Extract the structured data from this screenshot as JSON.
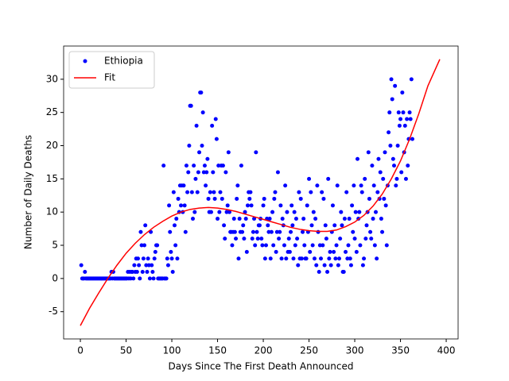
{
  "chart_data": {
    "type": "scatter",
    "xlabel": "Days Since The First Death Announced",
    "ylabel": "Number of Daily Deaths",
    "xlim": [
      -18.3,
      413
    ],
    "ylim": [
      -9.1,
      35.0
    ],
    "xticks": [
      0,
      50,
      100,
      150,
      200,
      250,
      300,
      350,
      400
    ],
    "yticks": [
      -5,
      0,
      5,
      10,
      15,
      20,
      25,
      30
    ],
    "legend": "upper left",
    "series": [
      {
        "name": "Ethiopia",
        "color": "#0000ff",
        "mode": "markers",
        "x": [
          1,
          2,
          3,
          4,
          5,
          6,
          7,
          8,
          9,
          10,
          11,
          12,
          13,
          14,
          15,
          16,
          17,
          18,
          19,
          20,
          21,
          22,
          23,
          24,
          25,
          26,
          27,
          28,
          29,
          30,
          31,
          32,
          33,
          34,
          35,
          36,
          37,
          38,
          39,
          40,
          41,
          42,
          43,
          44,
          45,
          46,
          47,
          48,
          49,
          50,
          51,
          52,
          53,
          54,
          55,
          56,
          57,
          58,
          59,
          60,
          61,
          62,
          63,
          64,
          65,
          66,
          67,
          68,
          69,
          70,
          71,
          72,
          73,
          74,
          75,
          76,
          77,
          78,
          79,
          80,
          81,
          82,
          83,
          84,
          85,
          86,
          87,
          88,
          89,
          90,
          91,
          92,
          93,
          94,
          95,
          96,
          97,
          98,
          99,
          100,
          101,
          102,
          103,
          104,
          105,
          106,
          107,
          108,
          109,
          110,
          111,
          112,
          113,
          114,
          115,
          116,
          117,
          118,
          119,
          120,
          121,
          122,
          123,
          124,
          125,
          126,
          127,
          128,
          129,
          130,
          131,
          132,
          133,
          134,
          135,
          136,
          137,
          138,
          139,
          140,
          141,
          142,
          143,
          144,
          145,
          146,
          147,
          148,
          149,
          150,
          151,
          152,
          153,
          154,
          155,
          156,
          157,
          158,
          159,
          160,
          161,
          162,
          163,
          164,
          165,
          166,
          167,
          168,
          169,
          170,
          171,
          172,
          173,
          174,
          175,
          176,
          177,
          178,
          179,
          180,
          181,
          182,
          183,
          184,
          185,
          186,
          187,
          188,
          189,
          190,
          191,
          192,
          193,
          194,
          195,
          196,
          197,
          198,
          199,
          200,
          201,
          202,
          203,
          204,
          205,
          206,
          207,
          208,
          209,
          210,
          211,
          212,
          213,
          214,
          215,
          216,
          217,
          218,
          219,
          220,
          221,
          222,
          223,
          224,
          225,
          226,
          227,
          228,
          229,
          230,
          231,
          232,
          233,
          234,
          235,
          236,
          237,
          238,
          239,
          240,
          241,
          242,
          243,
          244,
          245,
          246,
          247,
          248,
          249,
          250,
          251,
          252,
          253,
          254,
          255,
          256,
          257,
          258,
          259,
          260,
          261,
          262,
          263,
          264,
          265,
          266,
          267,
          268,
          269,
          270,
          271,
          272,
          273,
          274,
          275,
          276,
          277,
          278,
          279,
          280,
          281,
          282,
          283,
          284,
          285,
          286,
          287,
          288,
          289,
          290,
          291,
          292,
          293,
          294,
          295,
          296,
          297,
          298,
          299,
          300,
          301,
          302,
          303,
          304,
          305,
          306,
          307,
          308,
          309,
          310,
          311,
          312,
          313,
          314,
          315,
          316,
          317,
          318,
          319,
          320,
          321,
          322,
          323,
          324,
          325,
          326,
          327,
          328,
          329,
          330,
          331,
          332,
          333,
          334,
          335,
          336,
          337,
          338,
          339,
          340,
          341,
          342,
          343,
          344,
          345,
          346,
          347,
          348,
          349,
          350,
          351,
          352,
          353,
          354,
          355,
          356,
          357,
          358,
          359,
          360,
          361,
          362,
          363
        ],
        "values": [
          2,
          0,
          0,
          0,
          1,
          0,
          0,
          0,
          0,
          0,
          0,
          0,
          0,
          0,
          0,
          0,
          0,
          0,
          0,
          0,
          0,
          0,
          0,
          0,
          0,
          0,
          0,
          0,
          0,
          0,
          0,
          0,
          0,
          1,
          0,
          1,
          0,
          0,
          0,
          0,
          0,
          0,
          0,
          0,
          0,
          0,
          0,
          0,
          0,
          0,
          0,
          1,
          0,
          1,
          0,
          1,
          1,
          0,
          2,
          1,
          3,
          1,
          3,
          2,
          0,
          7,
          5,
          1,
          3,
          5,
          8,
          2,
          1,
          3,
          2,
          0,
          7,
          2,
          1,
          0,
          3,
          4,
          5,
          5,
          0,
          0,
          0,
          0,
          0,
          0,
          17,
          0,
          0,
          0,
          3,
          2,
          11,
          7,
          4,
          3,
          1,
          13,
          8,
          5,
          9,
          3,
          12,
          10,
          14,
          11,
          14,
          10,
          14,
          11,
          7,
          17,
          13,
          16,
          20,
          26,
          26,
          13,
          9,
          17,
          10,
          15,
          23,
          13,
          16,
          19,
          28,
          28,
          20,
          25,
          16,
          17,
          14,
          16,
          18,
          12,
          10,
          13,
          10,
          23,
          16,
          13,
          12,
          24,
          21,
          9,
          17,
          10,
          13,
          17,
          12,
          17,
          8,
          6,
          16,
          10,
          11,
          19,
          10,
          7,
          7,
          5,
          7,
          9,
          7,
          6,
          12,
          14,
          3,
          9,
          7,
          17,
          7,
          8,
          6,
          10,
          9,
          4,
          11,
          13,
          12,
          13,
          11,
          6,
          7,
          9,
          5,
          19,
          7,
          6,
          8,
          8,
          9,
          6,
          5,
          11,
          12,
          3,
          5,
          9,
          8,
          7,
          9,
          3,
          7,
          10,
          5,
          12,
          13,
          4,
          7,
          16,
          6,
          7,
          11,
          3,
          9,
          8,
          5,
          14,
          3,
          10,
          4,
          6,
          4,
          7,
          11,
          8,
          3,
          10,
          5,
          9,
          6,
          2,
          13,
          3,
          12,
          3,
          7,
          9,
          5,
          3,
          3,
          11,
          7,
          15,
          4,
          13,
          8,
          5,
          10,
          3,
          9,
          2,
          14,
          7,
          1,
          5,
          3,
          13,
          5,
          12,
          2,
          8,
          6,
          1,
          15,
          3,
          4,
          2,
          7,
          11,
          4,
          8,
          3,
          5,
          14,
          2,
          3,
          6,
          10,
          8,
          1,
          1,
          9,
          4,
          13,
          3,
          5,
          9,
          3,
          2,
          11,
          7,
          14,
          6,
          10,
          4,
          18,
          9,
          10,
          5,
          14,
          13,
          2,
          3,
          15,
          6,
          8,
          10,
          19,
          12,
          7,
          6,
          17,
          9,
          14,
          5,
          10,
          3,
          13,
          18,
          12,
          16,
          9,
          7,
          15,
          12,
          19,
          11,
          5,
          14,
          22,
          25,
          20,
          30,
          27,
          18,
          17,
          29,
          14,
          15,
          20,
          25,
          23,
          24,
          16,
          28,
          25,
          19,
          23,
          15,
          24,
          17,
          21,
          25,
          24,
          30,
          21
        ]
      },
      {
        "name": "Fit",
        "color": "#ff0000",
        "mode": "line",
        "x": [
          0,
          10,
          20,
          30,
          40,
          50,
          60,
          70,
          80,
          90,
          100,
          110,
          120,
          130,
          140,
          150,
          160,
          170,
          180,
          190,
          200,
          210,
          220,
          230,
          240,
          250,
          260,
          270,
          280,
          290,
          300,
          310,
          320,
          330,
          340,
          350,
          360,
          370,
          380,
          393
        ],
        "values": [
          -7.1,
          -4.5,
          -2.2,
          0,
          2,
          3.8,
          5.3,
          6.6,
          7.7,
          8.6,
          9.4,
          10,
          10.4,
          10.6,
          10.7,
          10.6,
          10.4,
          10.1,
          9.7,
          9.3,
          8.9,
          8.5,
          8.1,
          7.7,
          7.4,
          7.2,
          7.1,
          7.1,
          7.3,
          7.8,
          8.5,
          9.5,
          10.9,
          12.7,
          15,
          17.7,
          21,
          24.8,
          29,
          33
        ]
      }
    ]
  }
}
